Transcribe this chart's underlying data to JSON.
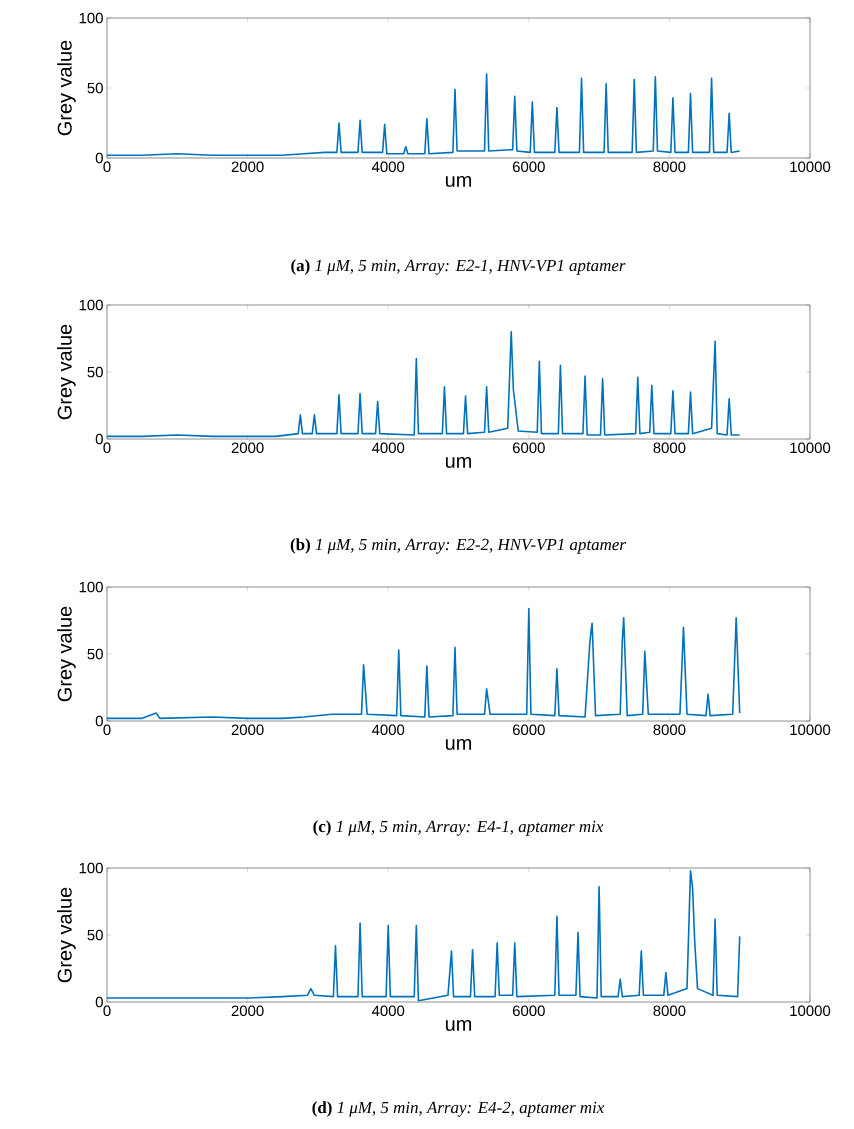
{
  "chart_data": [
    {
      "type": "line",
      "title": "**(a)** *1 μM, 5 min, Array: E2-1, HNV-VP1 aptamer*",
      "xlabel": "um",
      "ylabel": "Grey value",
      "xlim": [
        0,
        10000
      ],
      "ylim": [
        0,
        100
      ],
      "xticks": [
        0,
        2000,
        4000,
        6000,
        8000,
        10000
      ],
      "yticks": [
        0,
        50,
        100
      ],
      "grid": false,
      "series": [
        {
          "color": "#0072bd",
          "x": [
            0,
            500,
            1000,
            1500,
            2000,
            2500,
            2800,
            3100,
            3270,
            3300,
            3330,
            3570,
            3600,
            3630,
            3920,
            3950,
            3980,
            4220,
            4250,
            4280,
            4520,
            4550,
            4580,
            4920,
            4950,
            4980,
            5370,
            5400,
            5430,
            5770,
            5800,
            5830,
            6020,
            6050,
            6080,
            6370,
            6400,
            6430,
            6720,
            6750,
            6780,
            7070,
            7100,
            7130,
            7470,
            7500,
            7530,
            7770,
            7800,
            7830,
            8020,
            8050,
            8080,
            8270,
            8300,
            8330,
            8570,
            8600,
            8630,
            8820,
            8850,
            8880,
            9000
          ],
          "values": [
            2,
            2,
            3,
            2,
            2,
            2,
            3,
            4,
            4,
            25,
            4,
            4,
            27,
            4,
            4,
            24,
            3,
            3,
            8,
            3,
            3,
            28,
            3,
            4,
            49,
            5,
            5,
            60,
            5,
            6,
            44,
            5,
            4,
            40,
            4,
            4,
            36,
            4,
            4,
            57,
            4,
            4,
            53,
            4,
            4,
            56,
            4,
            5,
            58,
            5,
            4,
            43,
            4,
            4,
            46,
            4,
            4,
            57,
            4,
            4,
            32,
            4,
            5
          ]
        }
      ]
    },
    {
      "type": "line",
      "title": "**(b)** *1 μM, 5 min, Array: E2-2, HNV-VP1 aptamer*",
      "xlabel": "um",
      "ylabel": "Grey value",
      "xlim": [
        0,
        10000
      ],
      "ylim": [
        0,
        100
      ],
      "xticks": [
        0,
        2000,
        4000,
        6000,
        8000,
        10000
      ],
      "yticks": [
        0,
        50,
        100
      ],
      "grid": false,
      "series": [
        {
          "color": "#0072bd",
          "x": [
            0,
            500,
            1000,
            1500,
            2000,
            2400,
            2720,
            2750,
            2780,
            2920,
            2950,
            2980,
            3270,
            3300,
            3330,
            3570,
            3600,
            3630,
            3820,
            3850,
            3880,
            4370,
            4400,
            4430,
            4770,
            4800,
            4830,
            5070,
            5100,
            5130,
            5370,
            5400,
            5430,
            5700,
            5750,
            5780,
            5850,
            6120,
            6150,
            6180,
            6420,
            6450,
            6480,
            6770,
            6800,
            6830,
            7020,
            7050,
            7080,
            7520,
            7550,
            7580,
            7720,
            7750,
            7780,
            8020,
            8050,
            8080,
            8270,
            8300,
            8330,
            8600,
            8650,
            8680,
            8820,
            8850,
            8880,
            9000
          ],
          "values": [
            2,
            2,
            3,
            2,
            2,
            2,
            4,
            18,
            4,
            4,
            18,
            4,
            4,
            33,
            4,
            4,
            34,
            4,
            4,
            28,
            4,
            3,
            60,
            4,
            4,
            39,
            4,
            4,
            32,
            4,
            5,
            39,
            5,
            8,
            80,
            37,
            6,
            5,
            58,
            4,
            4,
            55,
            4,
            4,
            47,
            3,
            3,
            45,
            3,
            4,
            46,
            4,
            5,
            40,
            4,
            4,
            36,
            4,
            4,
            35,
            4,
            8,
            73,
            4,
            3,
            30,
            3,
            3
          ]
        }
      ]
    },
    {
      "type": "line",
      "title": "**(c)** *1 μM, 5 min, Array: E4-1, aptamer mix*",
      "xlabel": "um",
      "ylabel": "Grey value",
      "xlim": [
        0,
        10000
      ],
      "ylim": [
        0,
        100
      ],
      "xticks": [
        0,
        2000,
        4000,
        6000,
        8000,
        10000
      ],
      "yticks": [
        0,
        50,
        100
      ],
      "grid": false,
      "series": [
        {
          "color": "#0072bd",
          "x": [
            0,
            500,
            700,
            750,
            1500,
            2000,
            2500,
            2800,
            3200,
            3620,
            3650,
            3700,
            4120,
            4150,
            4180,
            4520,
            4550,
            4580,
            4920,
            4950,
            4980,
            5370,
            5400,
            5450,
            5970,
            6000,
            6030,
            6370,
            6400,
            6430,
            6800,
            6870,
            6900,
            6950,
            7300,
            7330,
            7350,
            7400,
            7620,
            7650,
            7700,
            8150,
            8200,
            8250,
            8520,
            8550,
            8580,
            8900,
            8950,
            9000
          ],
          "values": [
            2,
            2,
            6,
            2,
            3,
            2,
            2,
            3,
            5,
            5,
            42,
            5,
            4,
            53,
            4,
            3,
            41,
            3,
            4,
            55,
            5,
            5,
            24,
            5,
            5,
            84,
            5,
            4,
            39,
            4,
            3,
            60,
            73,
            4,
            5,
            60,
            77,
            4,
            5,
            52,
            5,
            5,
            70,
            5,
            4,
            20,
            4,
            5,
            77,
            6
          ]
        }
      ]
    },
    {
      "type": "line",
      "title": "**(d)** *1 μM, 5 min, Array: E4-2, aptamer mix*",
      "xlabel": "um",
      "ylabel": "Grey value",
      "xlim": [
        0,
        10000
      ],
      "ylim": [
        0,
        100
      ],
      "xticks": [
        0,
        2000,
        4000,
        6000,
        8000,
        10000
      ],
      "yticks": [
        0,
        50,
        100
      ],
      "grid": false,
      "series": [
        {
          "color": "#0072bd",
          "x": [
            0,
            500,
            1000,
            1500,
            2000,
            2500,
            2850,
            2900,
            2950,
            3220,
            3250,
            3280,
            3570,
            3600,
            3630,
            3970,
            4000,
            4030,
            4370,
            4400,
            4430,
            4850,
            4900,
            4930,
            5170,
            5200,
            5230,
            5520,
            5550,
            5580,
            5770,
            5800,
            5830,
            6370,
            6400,
            6430,
            6670,
            6700,
            6730,
            6970,
            7000,
            7030,
            7270,
            7300,
            7330,
            7570,
            7600,
            7630,
            7920,
            7950,
            7980,
            8250,
            8300,
            8330,
            8360,
            8400,
            8620,
            8650,
            8680,
            8970,
            9000
          ],
          "values": [
            3,
            3,
            3,
            3,
            3,
            4,
            5,
            10,
            5,
            4,
            42,
            4,
            4,
            59,
            4,
            4,
            57,
            4,
            4,
            57,
            1,
            5,
            38,
            4,
            4,
            39,
            4,
            4,
            44,
            5,
            5,
            44,
            4,
            5,
            64,
            5,
            5,
            52,
            4,
            3,
            86,
            4,
            4,
            17,
            4,
            5,
            38,
            5,
            5,
            22,
            5,
            10,
            98,
            85,
            45,
            10,
            5,
            62,
            5,
            4,
            49
          ]
        }
      ]
    }
  ]
}
